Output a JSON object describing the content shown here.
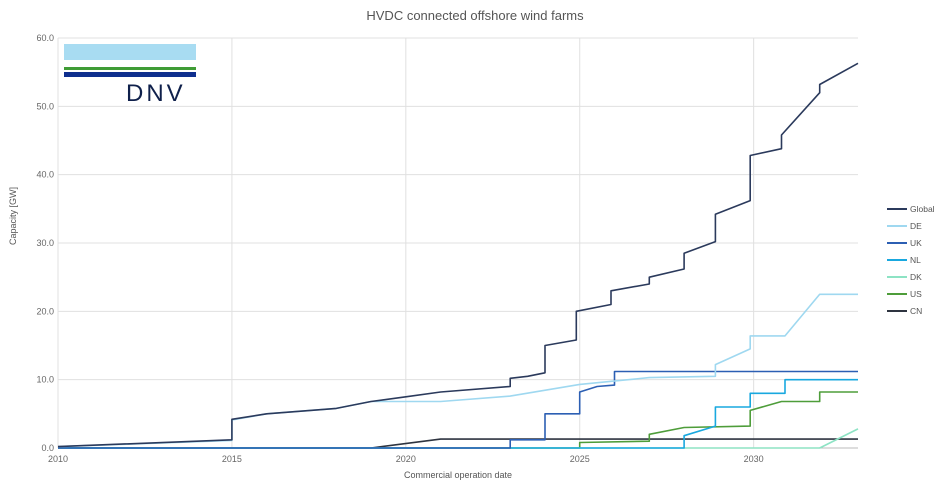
{
  "logo": {
    "text": "DNV"
  },
  "chart_data": {
    "type": "line",
    "title": "HVDC connected offshore wind farms",
    "xlabel": "Commercial operation date",
    "ylabel": "Capacity [GW]",
    "xlim": [
      2010,
      2033
    ],
    "ylim": [
      0,
      60
    ],
    "x_ticks": [
      2010,
      2015,
      2020,
      2025,
      2030
    ],
    "x_tick_labels": [
      "2010",
      "2015",
      "2020",
      "2025",
      "2030"
    ],
    "y_ticks": [
      0,
      10,
      20,
      30,
      40,
      50,
      60
    ],
    "y_tick_labels": [
      "0.0",
      "10.0",
      "20.0",
      "30.0",
      "40.0",
      "50.0",
      "60.0"
    ],
    "grid": true,
    "legend_position": "right",
    "series": [
      {
        "name": "Global",
        "color": "#2b3a5c",
        "points": [
          [
            2010,
            0.2
          ],
          [
            2015,
            1.2
          ],
          [
            2015,
            4.2
          ],
          [
            2016,
            5.0
          ],
          [
            2018,
            5.8
          ],
          [
            2019,
            6.8
          ],
          [
            2020,
            7.5
          ],
          [
            2021,
            8.2
          ],
          [
            2023,
            9.0
          ],
          [
            2023,
            10.2
          ],
          [
            2023.5,
            10.5
          ],
          [
            2024,
            11.0
          ],
          [
            2024,
            15.0
          ],
          [
            2024.9,
            15.8
          ],
          [
            2024.9,
            20.0
          ],
          [
            2025.9,
            21.0
          ],
          [
            2025.9,
            23.0
          ],
          [
            2027,
            24.0
          ],
          [
            2027,
            25.0
          ],
          [
            2028,
            26.2
          ],
          [
            2028,
            28.5
          ],
          [
            2028.9,
            30.2
          ],
          [
            2028.9,
            34.2
          ],
          [
            2029.9,
            36.2
          ],
          [
            2029.9,
            42.8
          ],
          [
            2030.8,
            43.8
          ],
          [
            2030.8,
            45.8
          ],
          [
            2031.9,
            52.0
          ],
          [
            2031.9,
            53.2
          ],
          [
            2033,
            56.3
          ]
        ]
      },
      {
        "name": "DE",
        "color": "#9fd8f0",
        "points": [
          [
            2010,
            0.2
          ],
          [
            2015,
            1.1
          ],
          [
            2015,
            4.1
          ],
          [
            2016,
            5.0
          ],
          [
            2018,
            5.8
          ],
          [
            2019,
            6.8
          ],
          [
            2021,
            6.8
          ],
          [
            2023,
            7.6
          ],
          [
            2025,
            9.3
          ],
          [
            2027,
            10.3
          ],
          [
            2028.9,
            10.5
          ],
          [
            2028.9,
            12.2
          ],
          [
            2029.9,
            14.5
          ],
          [
            2029.9,
            16.4
          ],
          [
            2030.9,
            16.4
          ],
          [
            2031.9,
            22.5
          ],
          [
            2033,
            22.5
          ]
        ]
      },
      {
        "name": "UK",
        "color": "#2c5fb3",
        "points": [
          [
            2010,
            0
          ],
          [
            2023,
            0
          ],
          [
            2023,
            1.2
          ],
          [
            2024,
            1.2
          ],
          [
            2024,
            5.0
          ],
          [
            2025,
            5.0
          ],
          [
            2025,
            8.2
          ],
          [
            2025.5,
            9.0
          ],
          [
            2026,
            9.2
          ],
          [
            2026,
            11.2
          ],
          [
            2033,
            11.2
          ]
        ]
      },
      {
        "name": "NL",
        "color": "#19a8df",
        "points": [
          [
            2010,
            0
          ],
          [
            2028,
            0
          ],
          [
            2028,
            1.8
          ],
          [
            2028.9,
            3.2
          ],
          [
            2028.9,
            6.0
          ],
          [
            2029.9,
            6.0
          ],
          [
            2029.9,
            8.0
          ],
          [
            2030.9,
            8.0
          ],
          [
            2030.9,
            10.0
          ],
          [
            2033,
            10.0
          ]
        ]
      },
      {
        "name": "DK",
        "color": "#8de3c4",
        "points": [
          [
            2010,
            0
          ],
          [
            2031.9,
            0
          ],
          [
            2033,
            2.8
          ]
        ]
      },
      {
        "name": "US",
        "color": "#4e9d3a",
        "points": [
          [
            2010,
            0
          ],
          [
            2025,
            0
          ],
          [
            2025,
            0.8
          ],
          [
            2027,
            1.0
          ],
          [
            2027,
            2.0
          ],
          [
            2028,
            3.0
          ],
          [
            2029.9,
            3.2
          ],
          [
            2029.9,
            5.5
          ],
          [
            2030.8,
            6.8
          ],
          [
            2031.9,
            6.8
          ],
          [
            2031.9,
            8.2
          ],
          [
            2033,
            8.2
          ]
        ]
      },
      {
        "name": "CN",
        "color": "#2e3440",
        "points": [
          [
            2010,
            0
          ],
          [
            2019,
            0
          ],
          [
            2021,
            1.3
          ],
          [
            2033,
            1.3
          ]
        ]
      }
    ]
  }
}
